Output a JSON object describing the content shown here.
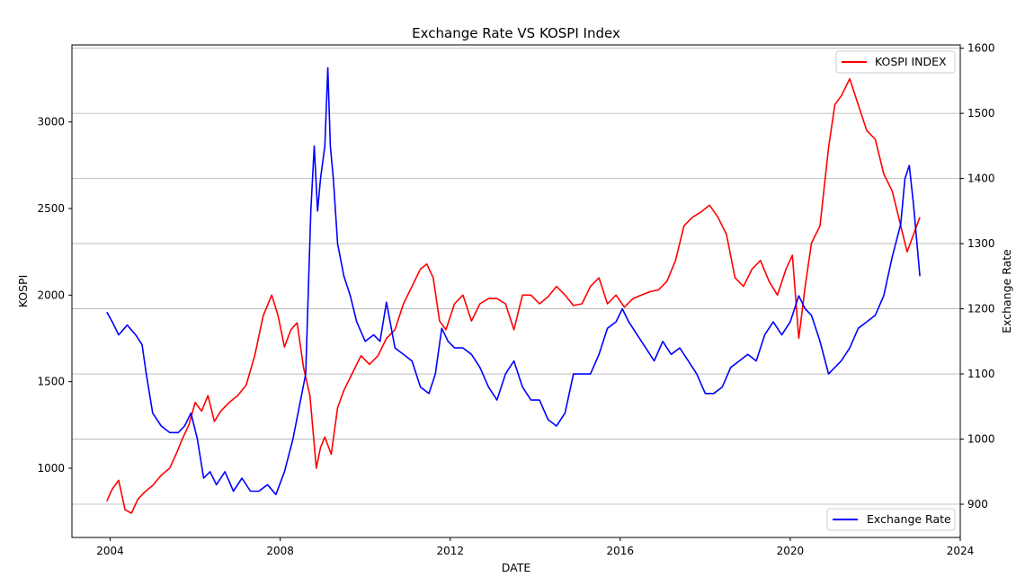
{
  "chart_data": {
    "type": "line",
    "title": "Exchange Rate VS KOSPI Index",
    "xlabel": "DATE",
    "ylabel_left": "KOSPI",
    "ylabel_right": "Exchange Rate",
    "xlim": [
      2003.1,
      2024.0
    ],
    "ylim_left": [
      600,
      3445
    ],
    "ylim_right": [
      849,
      1605
    ],
    "x_ticks": [
      2004,
      2008,
      2012,
      2016,
      2020,
      2024
    ],
    "y_ticks_left": [
      1000,
      1500,
      2000,
      2500,
      3000
    ],
    "y_ticks_right": [
      900,
      1000,
      1100,
      1200,
      1300,
      1400,
      1500,
      1600
    ],
    "grid": "horizontal, right axis",
    "series": [
      {
        "name": "KOSPI INDEX",
        "axis": "left",
        "color": "#ff0000",
        "legend_position": "top-right",
        "x": [
          2003.92,
          2004.05,
          2004.2,
          2004.35,
          2004.5,
          2004.65,
          2004.8,
          2005.0,
          2005.2,
          2005.4,
          2005.55,
          2005.7,
          2005.85,
          2006.0,
          2006.15,
          2006.3,
          2006.45,
          2006.6,
          2006.8,
          2007.0,
          2007.2,
          2007.4,
          2007.6,
          2007.8,
          2007.95,
          2008.1,
          2008.25,
          2008.4,
          2008.55,
          2008.7,
          2008.85,
          2008.95,
          2009.05,
          2009.2,
          2009.35,
          2009.5,
          2009.7,
          2009.9,
          2010.1,
          2010.3,
          2010.5,
          2010.7,
          2010.9,
          2011.1,
          2011.3,
          2011.45,
          2011.6,
          2011.75,
          2011.9,
          2012.1,
          2012.3,
          2012.5,
          2012.7,
          2012.9,
          2013.1,
          2013.3,
          2013.5,
          2013.7,
          2013.9,
          2014.1,
          2014.3,
          2014.5,
          2014.7,
          2014.9,
          2015.1,
          2015.3,
          2015.5,
          2015.7,
          2015.9,
          2016.1,
          2016.3,
          2016.5,
          2016.7,
          2016.9,
          2017.1,
          2017.3,
          2017.5,
          2017.7,
          2017.9,
          2018.1,
          2018.3,
          2018.5,
          2018.7,
          2018.9,
          2019.1,
          2019.3,
          2019.5,
          2019.7,
          2019.9,
          2020.05,
          2020.2,
          2020.35,
          2020.5,
          2020.7,
          2020.9,
          2021.05,
          2021.2,
          2021.4,
          2021.6,
          2021.8,
          2022.0,
          2022.2,
          2022.4,
          2022.6,
          2022.75,
          2022.9,
          2023.05
        ],
        "y": [
          810,
          880,
          930,
          760,
          740,
          820,
          860,
          900,
          960,
          1000,
          1080,
          1170,
          1250,
          1380,
          1330,
          1420,
          1270,
          1330,
          1380,
          1420,
          1480,
          1650,
          1880,
          2000,
          1880,
          1700,
          1800,
          1840,
          1580,
          1420,
          1000,
          1120,
          1180,
          1080,
          1350,
          1450,
          1550,
          1650,
          1600,
          1650,
          1750,
          1800,
          1950,
          2050,
          2150,
          2180,
          2100,
          1850,
          1800,
          1950,
          2000,
          1850,
          1950,
          1980,
          1980,
          1950,
          1800,
          2000,
          2000,
          1950,
          1990,
          2050,
          2000,
          1940,
          1950,
          2050,
          2100,
          1950,
          2000,
          1930,
          1980,
          2000,
          2020,
          2030,
          2080,
          2200,
          2400,
          2450,
          2480,
          2520,
          2450,
          2350,
          2100,
          2050,
          2150,
          2200,
          2080,
          2000,
          2150,
          2230,
          1750,
          2050,
          2300,
          2400,
          2850,
          3100,
          3150,
          3250,
          3100,
          2950,
          2900,
          2700,
          2600,
          2400,
          2250,
          2350,
          2450
        ]
      },
      {
        "name": "Exchange Rate",
        "axis": "right",
        "color": "#0000ff",
        "legend_position": "bottom-right",
        "x": [
          2003.92,
          2004.05,
          2004.2,
          2004.4,
          2004.6,
          2004.75,
          2004.85,
          2005.0,
          2005.2,
          2005.4,
          2005.6,
          2005.75,
          2005.9,
          2006.05,
          2006.2,
          2006.35,
          2006.5,
          2006.7,
          2006.9,
          2007.1,
          2007.3,
          2007.5,
          2007.7,
          2007.9,
          2008.1,
          2008.3,
          2008.45,
          2008.6,
          2008.72,
          2008.8,
          2008.88,
          2008.95,
          2009.05,
          2009.12,
          2009.18,
          2009.25,
          2009.35,
          2009.5,
          2009.65,
          2009.8,
          2010.0,
          2010.2,
          2010.35,
          2010.5,
          2010.7,
          2010.9,
          2011.1,
          2011.3,
          2011.5,
          2011.65,
          2011.8,
          2011.95,
          2012.1,
          2012.3,
          2012.5,
          2012.7,
          2012.9,
          2013.1,
          2013.3,
          2013.5,
          2013.7,
          2013.9,
          2014.1,
          2014.3,
          2014.5,
          2014.7,
          2014.9,
          2015.1,
          2015.3,
          2015.5,
          2015.7,
          2015.9,
          2016.05,
          2016.2,
          2016.4,
          2016.6,
          2016.8,
          2017.0,
          2017.2,
          2017.4,
          2017.6,
          2017.8,
          2018.0,
          2018.2,
          2018.4,
          2018.6,
          2018.8,
          2019.0,
          2019.2,
          2019.4,
          2019.6,
          2019.8,
          2020.0,
          2020.2,
          2020.35,
          2020.5,
          2020.7,
          2020.9,
          2021.05,
          2021.2,
          2021.4,
          2021.6,
          2021.8,
          2022.0,
          2022.2,
          2022.4,
          2022.6,
          2022.7,
          2022.8,
          2022.9,
          2023.05
        ],
        "y": [
          1195,
          1180,
          1160,
          1175,
          1160,
          1145,
          1100,
          1040,
          1020,
          1010,
          1010,
          1020,
          1040,
          1000,
          940,
          950,
          930,
          950,
          920,
          940,
          920,
          920,
          930,
          915,
          950,
          1000,
          1050,
          1100,
          1350,
          1450,
          1350,
          1400,
          1450,
          1570,
          1450,
          1400,
          1300,
          1250,
          1220,
          1180,
          1150,
          1160,
          1150,
          1210,
          1140,
          1130,
          1120,
          1080,
          1070,
          1100,
          1170,
          1150,
          1140,
          1140,
          1130,
          1110,
          1080,
          1060,
          1100,
          1120,
          1080,
          1060,
          1060,
          1030,
          1020,
          1040,
          1100,
          1100,
          1100,
          1130,
          1170,
          1180,
          1200,
          1180,
          1160,
          1140,
          1120,
          1150,
          1130,
          1140,
          1120,
          1100,
          1070,
          1070,
          1080,
          1110,
          1120,
          1130,
          1120,
          1160,
          1180,
          1160,
          1180,
          1220,
          1200,
          1190,
          1150,
          1100,
          1110,
          1120,
          1140,
          1170,
          1180,
          1190,
          1220,
          1280,
          1330,
          1400,
          1420,
          1360,
          1250
        ]
      }
    ]
  }
}
